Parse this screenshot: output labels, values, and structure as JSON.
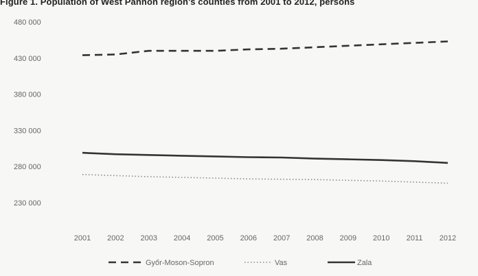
{
  "chart_data": {
    "type": "line",
    "title": "Figure 1. Population of West Pannon region's counties from 2001 to 2012, persons",
    "x": [
      "2001",
      "2002",
      "2003",
      "2004",
      "2005",
      "2006",
      "2007",
      "2008",
      "2009",
      "2010",
      "2011",
      "2012"
    ],
    "ylim": [
      230000,
      480000
    ],
    "yticks": [
      230000,
      280000,
      330000,
      380000,
      430000,
      480000
    ],
    "ytick_labels": [
      "230 000",
      "280 000",
      "330 000",
      "380 000",
      "430 000",
      "480 000"
    ],
    "grid": false,
    "legend_position": "bottom",
    "series": [
      {
        "name": "Győr-Moson-Sopron",
        "style": "dashed",
        "color": "#333333",
        "values": [
          434000,
          435000,
          440000,
          440000,
          440000,
          442000,
          443000,
          445000,
          447000,
          449000,
          451000,
          453000
        ]
      },
      {
        "name": "Vas",
        "style": "dotted",
        "color": "#888888",
        "values": [
          269000,
          267500,
          266000,
          265000,
          264000,
          263000,
          262500,
          262000,
          261000,
          260000,
          258500,
          257000
        ]
      },
      {
        "name": "Zala",
        "style": "solid",
        "color": "#333333",
        "values": [
          299000,
          297000,
          296000,
          295000,
          294000,
          293000,
          292500,
          291000,
          290000,
          289000,
          287500,
          285000
        ]
      }
    ]
  }
}
